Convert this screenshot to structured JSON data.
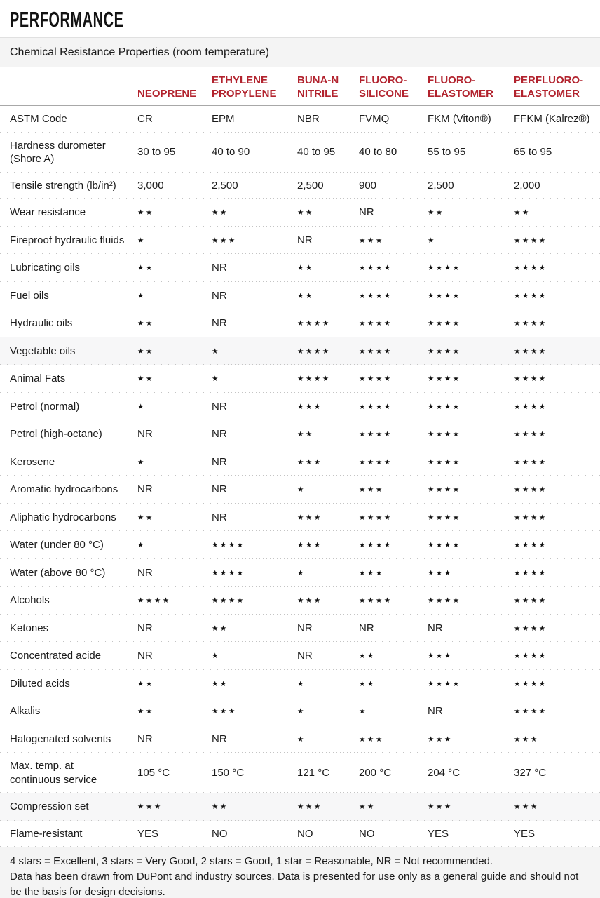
{
  "page_title": "PERFORMANCE",
  "section_title": "Chemical Resistance Properties (room temperature)",
  "accent_color": "#b2232e",
  "table": {
    "columns": [
      {
        "lines": [
          "NEOPRENE"
        ]
      },
      {
        "lines": [
          "ETHYLENE",
          "PROPYLENE"
        ]
      },
      {
        "lines": [
          "BUNA-N",
          "NITRILE"
        ]
      },
      {
        "lines": [
          "FLUORO-",
          "SILICONE"
        ]
      },
      {
        "lines": [
          "FLUORO-",
          "ELASTOMER"
        ]
      },
      {
        "lines": [
          "PERFLUORO-",
          "ELASTOMER"
        ]
      }
    ],
    "star_legend": {
      "symbol": "★",
      "nr": "NR"
    },
    "rows": [
      {
        "label_lines": [
          "ASTM Code"
        ],
        "cells": [
          "CR",
          "EPM",
          "NBR",
          "FVMQ",
          "FKM (Viton®)",
          "FFKM (Kalrez®)"
        ]
      },
      {
        "label_lines": [
          "Hardness durometer",
          "(Shore A)"
        ],
        "cells": [
          "30 to 95",
          "40 to 90",
          "40 to 95",
          "40 to 80",
          "55 to 95",
          "65 to 95"
        ]
      },
      {
        "label_lines": [
          "Tensile strength (lb/in²)"
        ],
        "cells": [
          "3,000",
          "2,500",
          "2,500",
          "900",
          "2,500",
          "2,000"
        ]
      },
      {
        "label_lines": [
          "Wear resistance"
        ],
        "cells": [
          2,
          2,
          2,
          "NR",
          2,
          2
        ]
      },
      {
        "label_lines": [
          "Fireproof hydraulic fluids"
        ],
        "cells": [
          1,
          3,
          "NR",
          3,
          1,
          4
        ]
      },
      {
        "label_lines": [
          "Lubricating oils"
        ],
        "cells": [
          2,
          "NR",
          2,
          4,
          4,
          4
        ]
      },
      {
        "label_lines": [
          "Fuel oils"
        ],
        "cells": [
          1,
          "NR",
          2,
          4,
          4,
          4
        ]
      },
      {
        "label_lines": [
          "Hydraulic oils"
        ],
        "cells": [
          2,
          "NR",
          4,
          4,
          4,
          4
        ]
      },
      {
        "label_lines": [
          "Vegetable oils"
        ],
        "cells": [
          2,
          1,
          4,
          4,
          4,
          4
        ]
      },
      {
        "label_lines": [
          "Animal Fats"
        ],
        "cells": [
          2,
          1,
          4,
          4,
          4,
          4
        ]
      },
      {
        "label_lines": [
          "Petrol (normal)"
        ],
        "cells": [
          1,
          "NR",
          3,
          4,
          4,
          4
        ]
      },
      {
        "label_lines": [
          "Petrol (high-octane)"
        ],
        "cells": [
          "NR",
          "NR",
          2,
          4,
          4,
          4
        ]
      },
      {
        "label_lines": [
          "Kerosene"
        ],
        "cells": [
          1,
          "NR",
          3,
          4,
          4,
          4
        ]
      },
      {
        "label_lines": [
          "Aromatic hydrocarbons"
        ],
        "cells": [
          "NR",
          "NR",
          1,
          3,
          4,
          4
        ]
      },
      {
        "label_lines": [
          "Aliphatic hydrocarbons"
        ],
        "cells": [
          2,
          "NR",
          3,
          4,
          4,
          4
        ]
      },
      {
        "label_lines": [
          "Water (under 80 °C)"
        ],
        "cells": [
          1,
          4,
          3,
          4,
          4,
          4
        ]
      },
      {
        "label_lines": [
          "Water (above 80 °C)"
        ],
        "cells": [
          "NR",
          4,
          1,
          3,
          3,
          4
        ]
      },
      {
        "label_lines": [
          "Alcohols"
        ],
        "cells": [
          4,
          4,
          3,
          4,
          4,
          4
        ]
      },
      {
        "label_lines": [
          "Ketones"
        ],
        "cells": [
          "NR",
          2,
          "NR",
          "NR",
          "NR",
          4
        ]
      },
      {
        "label_lines": [
          "Concentrated acide"
        ],
        "cells": [
          "NR",
          1,
          "NR",
          2,
          3,
          4
        ]
      },
      {
        "label_lines": [
          "Diluted acids"
        ],
        "cells": [
          2,
          2,
          1,
          2,
          4,
          4
        ]
      },
      {
        "label_lines": [
          "Alkalis"
        ],
        "cells": [
          2,
          3,
          1,
          1,
          "NR",
          4
        ]
      },
      {
        "label_lines": [
          "Halogenated solvents"
        ],
        "cells": [
          "NR",
          "NR",
          1,
          3,
          3,
          3
        ]
      },
      {
        "label_lines": [
          "Max. temp. at",
          "continuous service"
        ],
        "cells": [
          "105 °C",
          "150 °C",
          "121 °C",
          "200 °C",
          "204 °C",
          "327 °C"
        ]
      },
      {
        "label_lines": [
          "Compression set"
        ],
        "cells": [
          3,
          2,
          3,
          2,
          3,
          3
        ]
      },
      {
        "label_lines": [
          "Flame-resistant"
        ],
        "cells": [
          "YES",
          "NO",
          "NO",
          "NO",
          "YES",
          "YES"
        ]
      }
    ]
  },
  "footer": {
    "legend": "4 stars = Excellent, 3 stars = Very Good, 2 stars = Good, 1 star = Reasonable, NR = Not recommended.",
    "note": "Data has been drawn from DuPont and industry sources. Data is presented for use only as a general guide and should not be the basis for design decisions."
  }
}
